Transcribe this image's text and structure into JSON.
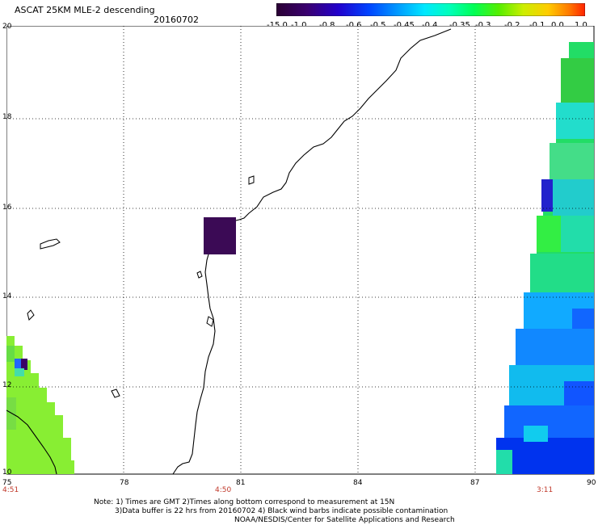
{
  "header": {
    "title": "ASCAT 25KM MLE-2 descending",
    "date": "20160702"
  },
  "colorbar": {
    "labels": [
      "-15.0",
      "-1.0",
      "-0.8",
      "-0.6",
      "-0.5",
      "-0.45",
      "-0.4",
      "-0.35",
      "-0.3",
      "-0.2",
      "-0.1",
      "0.0",
      "1.0"
    ],
    "colors": [
      "#2a0033",
      "#4b0066",
      "#2200cc",
      "#0044ff",
      "#0099ff",
      "#00ccff",
      "#00ffdd",
      "#00ff88",
      "#22ee00",
      "#aaee00",
      "#ffff00",
      "#ff8800",
      "#ff2200"
    ]
  },
  "map": {
    "lat_labels": [
      "20",
      "18",
      "16",
      "14",
      "12",
      "10"
    ],
    "lon_labels": [
      "75",
      "78",
      "81",
      "84",
      "87",
      "90"
    ],
    "time_labels": [
      "4:51",
      "4:50",
      "3:11"
    ]
  },
  "notes": {
    "line1": "Note: 1) Times are GMT 2)Times along bottom correspond to measurement at 15N",
    "line2": "3)Data buffer is 22 hrs from 20160702 4) Black wind barbs indicate possible contamination",
    "line3": "NOAA/NESDIS/Center for Satellite Applications and Research"
  }
}
